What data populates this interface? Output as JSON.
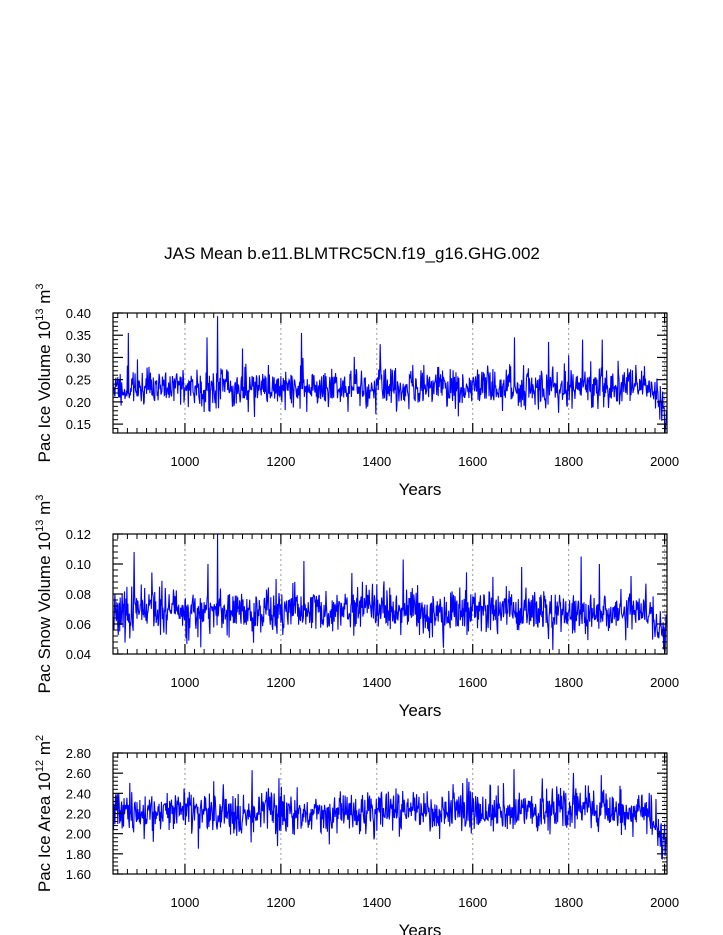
{
  "title": "JAS Mean b.e11.BLMTRC5CN.f19_g16.GHG.002",
  "line_color": "#0000ff",
  "grid_color": "#999999",
  "chart_data": [
    {
      "type": "line",
      "name": "pac-ice-volume",
      "ylabel_main": "Pac Ice Volume 10",
      "ylabel_exp": "13",
      "ylabel_unit": " m",
      "ylabel_unit_exp": "3",
      "xlabel": "Years",
      "xlim": [
        850,
        2005
      ],
      "ylim": [
        0.13,
        0.4
      ],
      "x_ticks": [
        1000,
        1200,
        1400,
        1600,
        1800,
        2000
      ],
      "y_ticks": [
        0.15,
        0.2,
        0.25,
        0.3,
        0.35,
        0.4
      ],
      "y_tick_labels": [
        "0.15",
        "0.20",
        "0.25",
        "0.30",
        "0.35",
        "0.40"
      ],
      "y_minor_step": 0.01,
      "x_minor_step": 20,
      "series_params": {
        "mean": 0.233,
        "sd": 0.022,
        "end_drop": 0.045,
        "seed": 11
      },
      "peaks": [
        [
          882,
          0.355
        ],
        [
          1068,
          0.393
        ],
        [
          1046,
          0.345
        ],
        [
          1243,
          0.355
        ],
        [
          1687,
          0.345
        ],
        [
          1829,
          0.34
        ],
        [
          1870,
          0.34
        ],
        [
          1120,
          0.32
        ],
        [
          1407,
          0.33
        ],
        [
          1758,
          0.335
        ],
        [
          1990,
          0.16
        ],
        [
          2000,
          0.15
        ],
        [
          2002,
          0.145
        ]
      ]
    },
    {
      "type": "line",
      "name": "pac-snow-volume",
      "ylabel_main": "Pac Snow Volume 10",
      "ylabel_exp": "13",
      "ylabel_unit": " m",
      "ylabel_unit_exp": "3",
      "xlabel": "Years",
      "xlim": [
        850,
        2005
      ],
      "ylim": [
        0.04,
        0.12
      ],
      "x_ticks": [
        1000,
        1200,
        1400,
        1600,
        1800,
        2000
      ],
      "y_ticks": [
        0.04,
        0.06,
        0.08,
        0.1,
        0.12
      ],
      "y_tick_labels": [
        "0.04",
        "0.06",
        "0.08",
        "0.10",
        "0.12"
      ],
      "y_minor_step": 0.004,
      "x_minor_step": 20,
      "series_params": {
        "mean": 0.068,
        "sd": 0.0075,
        "end_drop": 0.015,
        "seed": 23
      },
      "peaks": [
        [
          894,
          0.108
        ],
        [
          1068,
          0.12
        ],
        [
          1048,
          0.1
        ],
        [
          1248,
          0.102
        ],
        [
          1455,
          0.103
        ],
        [
          1826,
          0.105
        ],
        [
          1864,
          0.1
        ],
        [
          1702,
          0.098
        ],
        [
          1998,
          0.043
        ],
        [
          2001,
          0.041
        ],
        [
          1930,
          0.092
        ]
      ]
    },
    {
      "type": "line",
      "name": "pac-ice-area",
      "ylabel_main": "Pac Ice Area 10",
      "ylabel_exp": "12",
      "ylabel_unit": " m",
      "ylabel_unit_exp": "2",
      "xlabel": "Years",
      "xlim": [
        850,
        2005
      ],
      "ylim": [
        1.6,
        2.8
      ],
      "x_ticks": [
        1000,
        1200,
        1400,
        1600,
        1800,
        2000
      ],
      "y_ticks": [
        1.6,
        1.8,
        2.0,
        2.2,
        2.4,
        2.6,
        2.8
      ],
      "y_tick_labels": [
        "1.60",
        "1.80",
        "2.00",
        "2.20",
        "2.40",
        "2.60",
        "2.80"
      ],
      "y_minor_step": 0.04,
      "x_minor_step": 20,
      "series_params": {
        "mean": 2.22,
        "sd": 0.105,
        "end_drop": 0.25,
        "seed": 37
      },
      "peaks": [
        [
          1140,
          2.63
        ],
        [
          1686,
          2.64
        ],
        [
          1868,
          2.58
        ],
        [
          1060,
          2.52
        ],
        [
          1588,
          2.55
        ],
        [
          1028,
          1.85
        ],
        [
          1995,
          1.75
        ],
        [
          2001,
          1.78
        ],
        [
          1196,
          2.55
        ]
      ]
    }
  ]
}
